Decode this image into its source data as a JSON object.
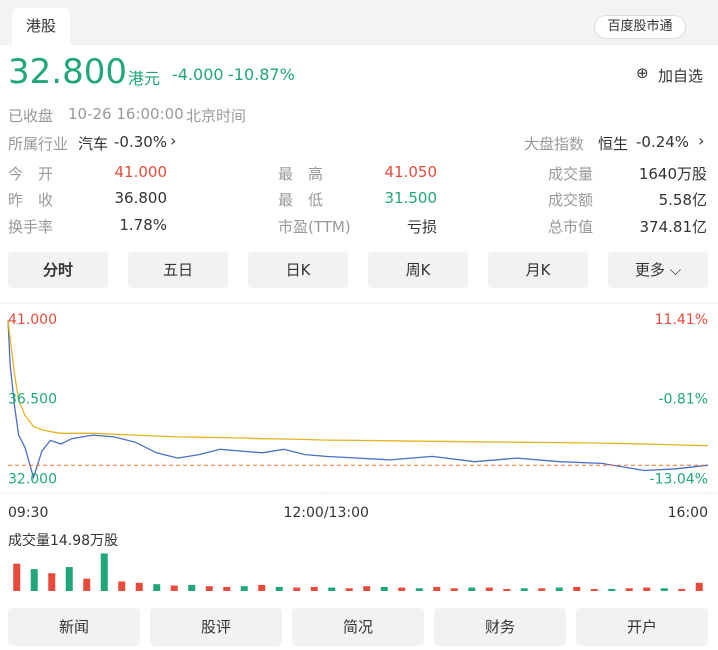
{
  "header": {
    "tab": "港股",
    "button": "百度股市通"
  },
  "quote": {
    "price": "32.800",
    "currency": "港元",
    "change": "-4.000",
    "change_pct": "-10.87%",
    "watch": "加自选",
    "status": "已收盘",
    "time": "10-26 16:00:00",
    "timezone": "北京时间"
  },
  "industry": {
    "label": "所属行业",
    "name": "汽车",
    "change": "-0.30%"
  },
  "market_index": {
    "label": "大盘指数",
    "name": "恒生",
    "change": "-0.24%"
  },
  "stats": {
    "rows": [
      [
        [
          "今　开",
          "41.000"
        ],
        [
          "最　高",
          "41.050"
        ],
        [
          "成交量",
          "1640万股"
        ]
      ],
      [
        [
          "昨　收",
          "36.800"
        ],
        [
          "最　低",
          "31.500"
        ],
        [
          "成交额",
          "5.58亿"
        ]
      ],
      [
        [
          "换手率",
          "1.78%"
        ],
        [
          "市盈(TTM)",
          "亏损"
        ],
        [
          "总市值",
          "374.81亿"
        ]
      ]
    ]
  },
  "tabs": [
    "分时",
    "五日",
    "日K",
    "周K",
    "月K",
    "更多"
  ],
  "chart_data": [
    {
      "type": "line",
      "x": [
        0,
        1,
        3,
        5,
        8,
        12,
        16,
        20,
        25,
        30,
        40,
        50,
        60,
        70,
        80,
        90,
        100,
        110,
        120,
        130,
        140,
        150,
        165,
        180,
        200,
        220,
        240,
        260,
        280,
        300,
        315,
        330
      ],
      "xlim": [
        0,
        330
      ],
      "xticks": [
        {
          "value": 0,
          "label": "09:30"
        },
        {
          "value": 150,
          "label": "12:00/13:00"
        },
        {
          "value": 330,
          "label": "16:00"
        }
      ],
      "series": [
        {
          "color": "#4a6fc4",
          "values": [
            41.0,
            38.5,
            36.2,
            34.5,
            33.8,
            32.1,
            33.6,
            34.2,
            34.0,
            34.3,
            34.5,
            34.4,
            34.1,
            33.5,
            33.2,
            33.4,
            33.7,
            33.6,
            33.5,
            33.7,
            33.4,
            33.3,
            33.2,
            33.1,
            33.3,
            33.0,
            33.2,
            33.0,
            32.9,
            32.5,
            32.6,
            32.8
          ]
        },
        {
          "color": "#e6b422",
          "values": [
            41.0,
            40.0,
            38.0,
            36.5,
            35.6,
            35.0,
            34.8,
            34.7,
            34.6,
            34.6,
            34.6,
            34.55,
            34.5,
            34.45,
            34.4,
            34.38,
            34.36,
            34.34,
            34.3,
            34.28,
            34.25,
            34.22,
            34.2,
            34.18,
            34.15,
            34.12,
            34.1,
            34.08,
            34.05,
            34.0,
            33.95,
            33.9
          ]
        }
      ],
      "reference_line": 32.8,
      "ylim": [
        31.4,
        41.85
      ],
      "yticks": [
        {
          "value": 41,
          "label": "41.000"
        },
        {
          "value": 36.5,
          "label": "36.500"
        },
        {
          "value": 32,
          "label": "32.000"
        }
      ],
      "y2lim": [
        -14.67,
        13.72
      ],
      "y2ticks": [
        {
          "value": 11.41,
          "label": "11.41%"
        },
        {
          "value": -0.81,
          "label": "-0.81%"
        },
        {
          "value": -13.04,
          "label": "-13.04%"
        }
      ]
    },
    {
      "type": "bar",
      "title": "成交量14.98万股",
      "ylim": [
        0,
        60
      ],
      "series": [
        {
          "color": "#e84a3c",
          "values": [
            40,
            null,
            26,
            null,
            18,
            null,
            14,
            12,
            null,
            8,
            null,
            7,
            6,
            null,
            9,
            null,
            5,
            6,
            null,
            4,
            7,
            null,
            5,
            null,
            6,
            4,
            null,
            5,
            3,
            null,
            4,
            null,
            6,
            3,
            null,
            4,
            5,
            null,
            3,
            12
          ]
        },
        {
          "color": "#1fa67a",
          "values": [
            null,
            32,
            null,
            35,
            null,
            55,
            null,
            null,
            10,
            null,
            9,
            null,
            null,
            7,
            null,
            6,
            null,
            null,
            5,
            null,
            null,
            6,
            null,
            4,
            null,
            null,
            5,
            null,
            null,
            4,
            null,
            5,
            null,
            null,
            3,
            null,
            null,
            4,
            null,
            null
          ]
        }
      ]
    }
  ],
  "nav": [
    "新闻",
    "股评",
    "简况",
    "财务",
    "开户"
  ]
}
